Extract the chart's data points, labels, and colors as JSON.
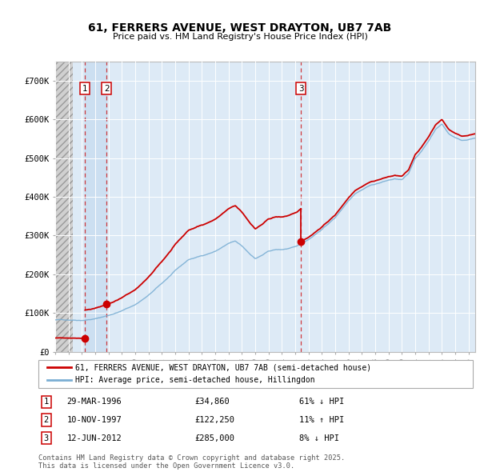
{
  "title": "61, FERRERS AVENUE, WEST DRAYTON, UB7 7AB",
  "subtitle": "Price paid vs. HM Land Registry's House Price Index (HPI)",
  "ylim": [
    0,
    750000
  ],
  "xlim_start": 1994.0,
  "xlim_end": 2025.5,
  "hpi_color": "#7bafd4",
  "price_color": "#cc0000",
  "transactions": [
    {
      "num": 1,
      "date_num": 1996.24,
      "price": 34860,
      "label": "29-MAR-1996",
      "amount": "£34,860",
      "hpi_diff": "61% ↓ HPI"
    },
    {
      "num": 2,
      "date_num": 1997.86,
      "price": 122250,
      "label": "10-NOV-1997",
      "amount": "£122,250",
      "hpi_diff": "11% ↑ HPI"
    },
    {
      "num": 3,
      "date_num": 2012.44,
      "price": 285000,
      "label": "12-JUN-2012",
      "amount": "£285,000",
      "hpi_diff": "8% ↓ HPI"
    }
  ],
  "legend_line1": "61, FERRERS AVENUE, WEST DRAYTON, UB7 7AB (semi-detached house)",
  "legend_line2": "HPI: Average price, semi-detached house, Hillingdon",
  "footer": "Contains HM Land Registry data © Crown copyright and database right 2025.\nThis data is licensed under the Open Government Licence v3.0.",
  "yticks": [
    0,
    100000,
    200000,
    300000,
    400000,
    500000,
    600000,
    700000
  ],
  "ytick_labels": [
    "£0",
    "£100K",
    "£200K",
    "£300K",
    "£400K",
    "£500K",
    "£600K",
    "£700K"
  ]
}
